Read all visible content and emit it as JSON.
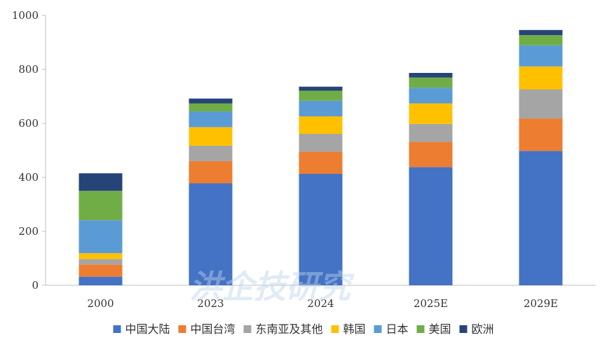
{
  "chart_data": {
    "type": "bar",
    "stacked": true,
    "categories": [
      "2000",
      "2023",
      "2024",
      "2025E",
      "2029E"
    ],
    "series": [
      {
        "name": "中国大陆",
        "color": "#4472C4",
        "values": [
          32,
          378,
          413,
          438,
          498
        ]
      },
      {
        "name": "中国台湾",
        "color": "#ED7D31",
        "values": [
          45,
          82,
          82,
          93,
          120
        ]
      },
      {
        "name": "东南亚及其他",
        "color": "#A5A5A5",
        "values": [
          20,
          57,
          66,
          67,
          108
        ]
      },
      {
        "name": "韩国",
        "color": "#FFC000",
        "values": [
          22,
          69,
          65,
          76,
          85
        ]
      },
      {
        "name": "日本",
        "color": "#5B9BD5",
        "values": [
          122,
          58,
          58,
          58,
          78
        ]
      },
      {
        "name": "美国",
        "color": "#70AD47",
        "values": [
          109,
          30,
          37,
          38,
          38
        ]
      },
      {
        "name": "欧洲",
        "color": "#264478",
        "values": [
          65,
          18,
          15,
          17,
          19
        ]
      }
    ],
    "yticks": [
      0,
      200,
      400,
      600,
      800,
      1000
    ],
    "ylim": [
      0,
      1000
    ],
    "grid": false,
    "legend_position": "bottom"
  },
  "watermark": {
    "text": "洪企技研究"
  }
}
